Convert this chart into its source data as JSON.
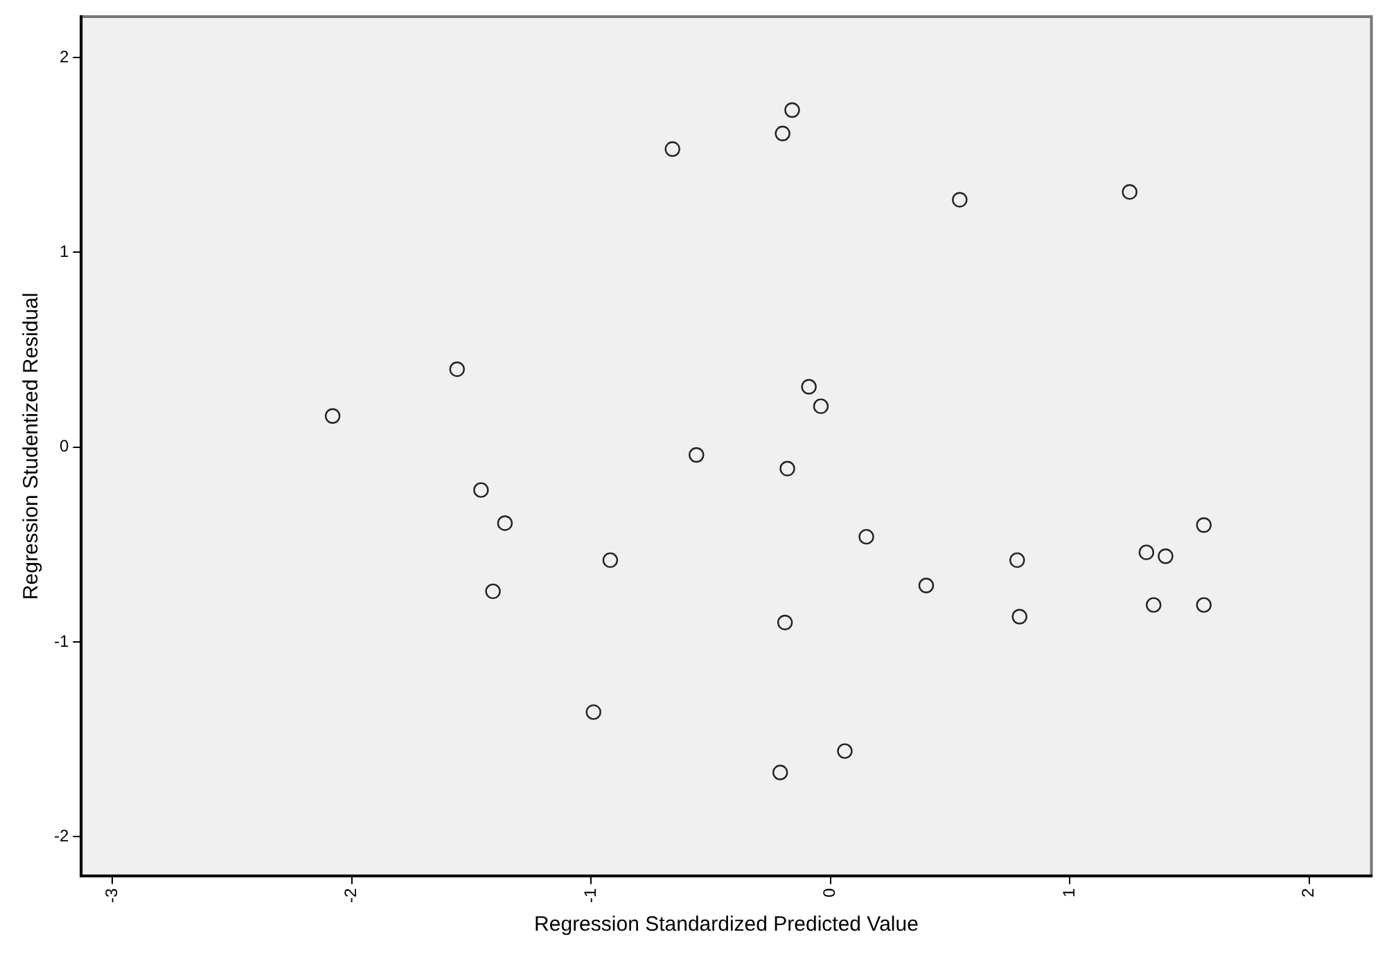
{
  "chart_data": {
    "type": "scatter",
    "xlabel": "Regression Standardized Predicted Value",
    "ylabel": "Regression Studentized Residual",
    "xlim": [
      -3.13,
      2.26
    ],
    "ylim": [
      -2.2,
      2.21
    ],
    "xticks": [
      -3,
      -2,
      -1,
      0,
      1,
      2
    ],
    "yticks": [
      -2,
      -1,
      0,
      1,
      2
    ],
    "grid": false,
    "legend": false,
    "marker": "circle",
    "series": [
      {
        "color": "#222222",
        "x": [
          -2.08,
          -1.56,
          -1.46,
          -1.36,
          -1.41,
          -0.92,
          -0.99,
          -0.66,
          -0.56,
          -0.2,
          -0.16,
          -0.09,
          -0.04,
          -0.18,
          -0.19,
          -0.21,
          0.06,
          0.15,
          0.4,
          0.54,
          0.78,
          0.79,
          1.25,
          1.32,
          1.4,
          1.56,
          1.35,
          1.56
        ],
        "values": [
          0.16,
          0.4,
          -0.22,
          -0.39,
          -0.74,
          -0.58,
          -1.36,
          1.53,
          -0.04,
          1.61,
          1.73,
          0.31,
          0.21,
          -0.11,
          -0.9,
          -1.67,
          -1.56,
          -0.46,
          -0.71,
          1.27,
          -0.58,
          -0.87,
          1.31,
          -0.54,
          -0.56,
          -0.4,
          -0.81,
          -0.81
        ]
      }
    ]
  }
}
